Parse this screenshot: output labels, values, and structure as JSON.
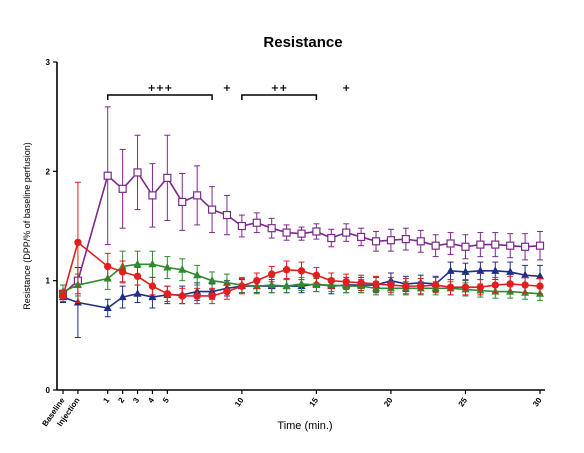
{
  "chart_data": {
    "type": "line",
    "title": "Resistance",
    "xlabel": "Time (min.)",
    "ylabel": "Resistance (DPP/% of baseline perfusion)",
    "xlim": [
      -2,
      30
    ],
    "ylim": [
      0,
      3
    ],
    "grid": false,
    "y_ticks": [
      "0",
      "1",
      "2",
      "3"
    ],
    "x_ticks": [
      {
        "x": -2,
        "label": "Baseline"
      },
      {
        "x": -1,
        "label": "Injection"
      },
      {
        "x": 1,
        "label": "1"
      },
      {
        "x": 2,
        "label": "2"
      },
      {
        "x": 3,
        "label": "3"
      },
      {
        "x": 4,
        "label": "4"
      },
      {
        "x": 5,
        "label": "5"
      },
      {
        "x": 10,
        "label": "10"
      },
      {
        "x": 15,
        "label": "15"
      },
      {
        "x": 20,
        "label": "20"
      },
      {
        "x": 25,
        "label": "25"
      },
      {
        "x": 30,
        "label": "30"
      }
    ],
    "x": [
      -2,
      -1,
      1,
      2,
      3,
      4,
      5,
      6,
      7,
      8,
      9,
      10,
      11,
      12,
      13,
      14,
      15,
      16,
      17,
      18,
      19,
      20,
      21,
      22,
      23,
      24,
      25,
      26,
      27,
      28,
      29,
      30
    ],
    "series": [
      {
        "color": "#7b2a8c",
        "marker": "open-square",
        "values": [
          0.88,
          1.0,
          1.96,
          1.84,
          1.99,
          1.78,
          1.94,
          1.72,
          1.78,
          1.65,
          1.6,
          1.5,
          1.53,
          1.48,
          1.44,
          1.43,
          1.45,
          1.39,
          1.44,
          1.4,
          1.36,
          1.37,
          1.38,
          1.36,
          1.32,
          1.34,
          1.31,
          1.33,
          1.33,
          1.32,
          1.31,
          1.32
        ],
        "errors": [
          0.08,
          0.12,
          0.63,
          0.36,
          0.34,
          0.29,
          0.39,
          0.26,
          0.27,
          0.21,
          0.18,
          0.1,
          0.09,
          0.09,
          0.07,
          0.06,
          0.07,
          0.08,
          0.08,
          0.08,
          0.09,
          0.1,
          0.1,
          0.1,
          0.1,
          0.1,
          0.11,
          0.11,
          0.11,
          0.11,
          0.12,
          0.13
        ]
      },
      {
        "color": "#1f2f86",
        "marker": "triangle",
        "values": [
          0.85,
          0.8,
          0.75,
          0.85,
          0.88,
          0.85,
          0.87,
          0.87,
          0.9,
          0.9,
          0.93,
          0.95,
          0.95,
          0.95,
          0.95,
          0.95,
          0.97,
          0.95,
          0.96,
          0.96,
          0.96,
          1.0,
          0.97,
          0.98,
          0.97,
          1.09,
          1.08,
          1.09,
          1.09,
          1.08,
          1.05,
          1.04
        ],
        "errors": [
          0.05,
          0.32,
          0.08,
          0.1,
          0.08,
          0.1,
          0.08,
          0.08,
          0.08,
          0.07,
          0.07,
          0.06,
          0.06,
          0.06,
          0.06,
          0.06,
          0.07,
          0.07,
          0.07,
          0.07,
          0.07,
          0.07,
          0.07,
          0.07,
          0.07,
          0.08,
          0.08,
          0.08,
          0.08,
          0.09,
          0.09,
          0.1
        ]
      },
      {
        "color": "#2e8b2e",
        "marker": "triangle",
        "values": [
          0.9,
          0.96,
          1.02,
          1.13,
          1.15,
          1.15,
          1.12,
          1.1,
          1.05,
          1.0,
          0.98,
          0.96,
          0.95,
          0.96,
          0.95,
          0.97,
          0.96,
          0.96,
          0.95,
          0.95,
          0.93,
          0.93,
          0.93,
          0.93,
          0.93,
          0.93,
          0.92,
          0.91,
          0.9,
          0.9,
          0.89,
          0.88
        ],
        "errors": [
          0.06,
          0.1,
          0.1,
          0.14,
          0.12,
          0.12,
          0.1,
          0.1,
          0.09,
          0.08,
          0.08,
          0.07,
          0.07,
          0.07,
          0.06,
          0.06,
          0.06,
          0.06,
          0.06,
          0.06,
          0.06,
          0.06,
          0.06,
          0.06,
          0.06,
          0.06,
          0.06,
          0.06,
          0.06,
          0.06,
          0.06,
          0.06
        ]
      },
      {
        "color": "#e02020",
        "marker": "filled-circle",
        "values": [
          0.86,
          1.35,
          1.13,
          1.08,
          1.04,
          0.95,
          0.88,
          0.86,
          0.86,
          0.86,
          0.9,
          0.95,
          1.0,
          1.06,
          1.1,
          1.09,
          1.05,
          1.0,
          0.99,
          0.98,
          0.97,
          0.96,
          0.95,
          0.95,
          0.96,
          0.94,
          0.94,
          0.94,
          0.96,
          0.97,
          0.96,
          0.95
        ],
        "errors": [
          0.05,
          0.55,
          0.12,
          0.1,
          0.08,
          0.08,
          0.07,
          0.07,
          0.07,
          0.07,
          0.07,
          0.07,
          0.07,
          0.07,
          0.08,
          0.08,
          0.07,
          0.07,
          0.07,
          0.07,
          0.07,
          0.07,
          0.07,
          0.07,
          0.07,
          0.07,
          0.07,
          0.07,
          0.07,
          0.07,
          0.07,
          0.07
        ]
      }
    ],
    "annotations": [
      {
        "text": "+++",
        "bracket": [
          1,
          8
        ]
      },
      {
        "text": "+",
        "at": 9
      },
      {
        "text": "++",
        "bracket": [
          10,
          15
        ]
      },
      {
        "text": "+",
        "at": 17
      }
    ]
  }
}
